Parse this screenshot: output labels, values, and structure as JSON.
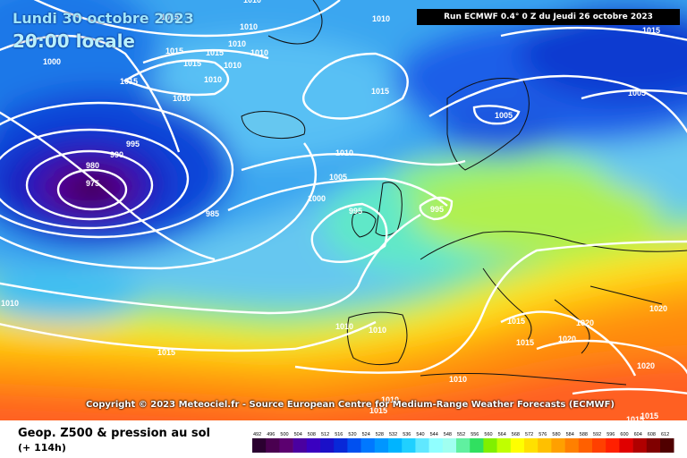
{
  "header": {
    "date": "Lundi 30 octobre 2023",
    "time": "20:00 locale",
    "run": "Run ECMWF 0.4° 0 Z du Jeudi 26 octobre 2023"
  },
  "copyright": "Copyright © 2023 Meteociel.fr - Source European Centre for Medium-Range Weather Forecasts (ECMWF)",
  "footer": {
    "product": "Geop. Z500 & pression au sol",
    "lead": "(+ 114h)"
  },
  "scale": {
    "labels": [
      "492",
      "496",
      "500",
      "504",
      "508",
      "512",
      "516",
      "520",
      "524",
      "528",
      "532",
      "536",
      "540",
      "544",
      "548",
      "552",
      "556",
      "560",
      "564",
      "568",
      "572",
      "576",
      "580",
      "584",
      "588",
      "592",
      "596",
      "600",
      "604",
      "608",
      "612"
    ],
    "colors": [
      "#2b0030",
      "#4a0050",
      "#5c0070",
      "#4a00a0",
      "#3a00c0",
      "#1a10c8",
      "#0828d8",
      "#0050f0",
      "#0078ff",
      "#0096ff",
      "#00b4ff",
      "#20d0ff",
      "#60e8ff",
      "#90ffff",
      "#a0fff0",
      "#60f0a0",
      "#30e060",
      "#80f000",
      "#c0ff00",
      "#ffff00",
      "#ffe000",
      "#ffc000",
      "#ffa000",
      "#ff8000",
      "#ff6000",
      "#ff4000",
      "#ff2000",
      "#e00000",
      "#b00000",
      "#800000",
      "#500000"
    ]
  },
  "isobars": [
    "1015",
    "1010",
    "1010",
    "1010",
    "1015",
    "1015",
    "1015",
    "1010",
    "1010",
    "1010",
    "1000",
    "1015",
    "1010",
    "1010",
    "1015",
    "1005",
    "1005",
    "1015",
    "990",
    "995",
    "980",
    "975",
    "985",
    "1010",
    "1005",
    "1000",
    "995",
    "995",
    "1010",
    "1010",
    "1010",
    "1015",
    "1015",
    "1015",
    "1020",
    "1020",
    "1020",
    "1020",
    "1010",
    "1010",
    "1015",
    "1015",
    "1015"
  ]
}
